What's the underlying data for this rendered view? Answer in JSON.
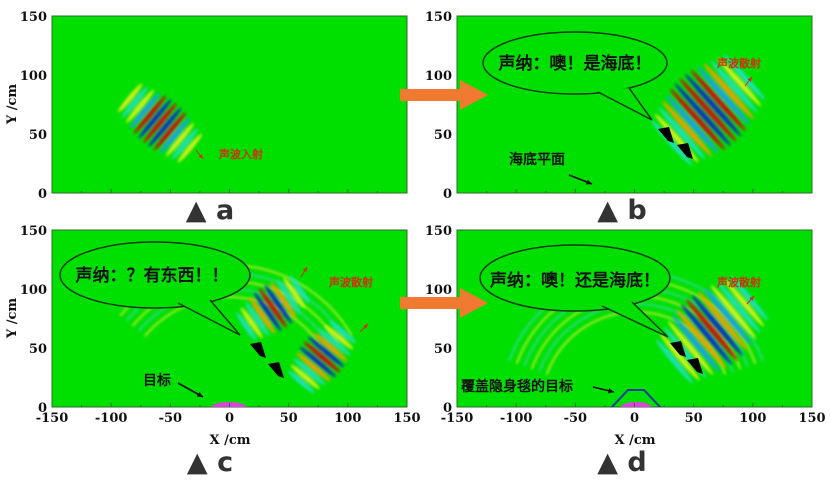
{
  "colors": {
    "field": "#00e000",
    "red": "#d03010",
    "orange": "#f07a30",
    "target": "#e040e0",
    "cloak": "#1a3a9a"
  },
  "axes": {
    "xlabel": "X /cm",
    "ylabel": "Y /cm",
    "xlim": [
      -150,
      150
    ],
    "ylim": [
      0,
      150
    ],
    "xticks": [
      "-150",
      "-100",
      "-50",
      "0",
      "50",
      "100",
      "150"
    ],
    "yticks": [
      "150",
      "100",
      "50",
      "0"
    ]
  },
  "panels": {
    "a": {
      "label": "▲ a",
      "wave_label": "声波入射"
    },
    "b": {
      "label": "▲ b",
      "bubble": "声纳：噢！是海底！",
      "wave_label": "声波散射",
      "seabed_label": "海底平面"
    },
    "c": {
      "label": "▲ c",
      "bubble": "声纳：？有东西！！",
      "wave_label": "声波散射",
      "target_label": "目标"
    },
    "d": {
      "label": "▲ d",
      "bubble": "声纳：噢！还是海底！",
      "wave_label": "声波散射",
      "target_label": "覆盖隐身毯的目标"
    }
  }
}
